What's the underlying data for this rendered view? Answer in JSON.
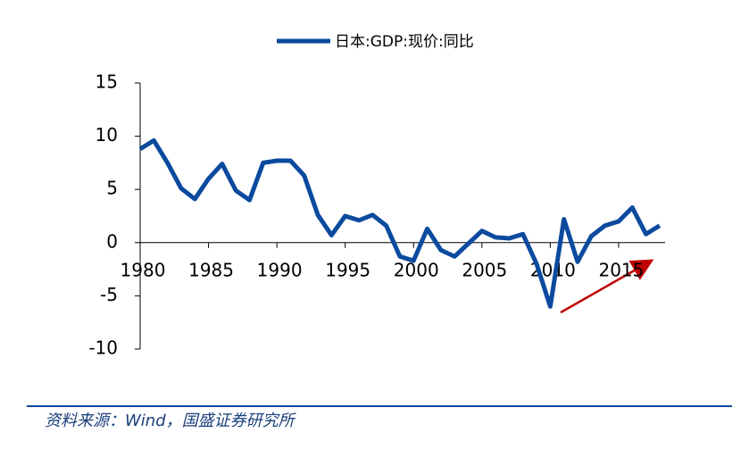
{
  "chart_data": {
    "type": "line",
    "x": [
      1980,
      1981,
      1982,
      1983,
      1984,
      1985,
      1986,
      1987,
      1988,
      1989,
      1990,
      1991,
      1992,
      1993,
      1994,
      1995,
      1996,
      1997,
      1998,
      1999,
      2000,
      2001,
      2002,
      2003,
      2004,
      2005,
      2006,
      2007,
      2008,
      2009,
      2010,
      2011,
      2012,
      2013,
      2014,
      2015,
      2016,
      2017,
      2018
    ],
    "series": [
      {
        "name": "日本:GDP:现价:同比",
        "color": "#0b4a9e",
        "values": [
          8.8,
          9.6,
          7.5,
          5.1,
          4.1,
          6.0,
          7.4,
          4.9,
          4.0,
          7.5,
          7.7,
          7.7,
          6.3,
          2.6,
          0.7,
          2.5,
          2.1,
          2.6,
          1.6,
          -1.3,
          -1.7,
          1.3,
          -0.7,
          -1.3,
          -0.1,
          1.1,
          0.5,
          0.4,
          0.8,
          -2.0,
          -6.0,
          2.2,
          -1.8,
          0.6,
          1.6,
          2.0,
          3.3,
          0.8,
          1.6
        ]
      }
    ],
    "xlim": [
      1980,
      2018.4
    ],
    "xticks": [
      1980,
      1985,
      1990,
      1995,
      2000,
      2005,
      2010,
      2015
    ],
    "ylim": [
      -10,
      15
    ],
    "yticks": [
      -10,
      -5,
      0,
      5,
      10,
      15
    ],
    "legend": "top",
    "source": "资料来源：Wind，国盛证券研究所"
  }
}
